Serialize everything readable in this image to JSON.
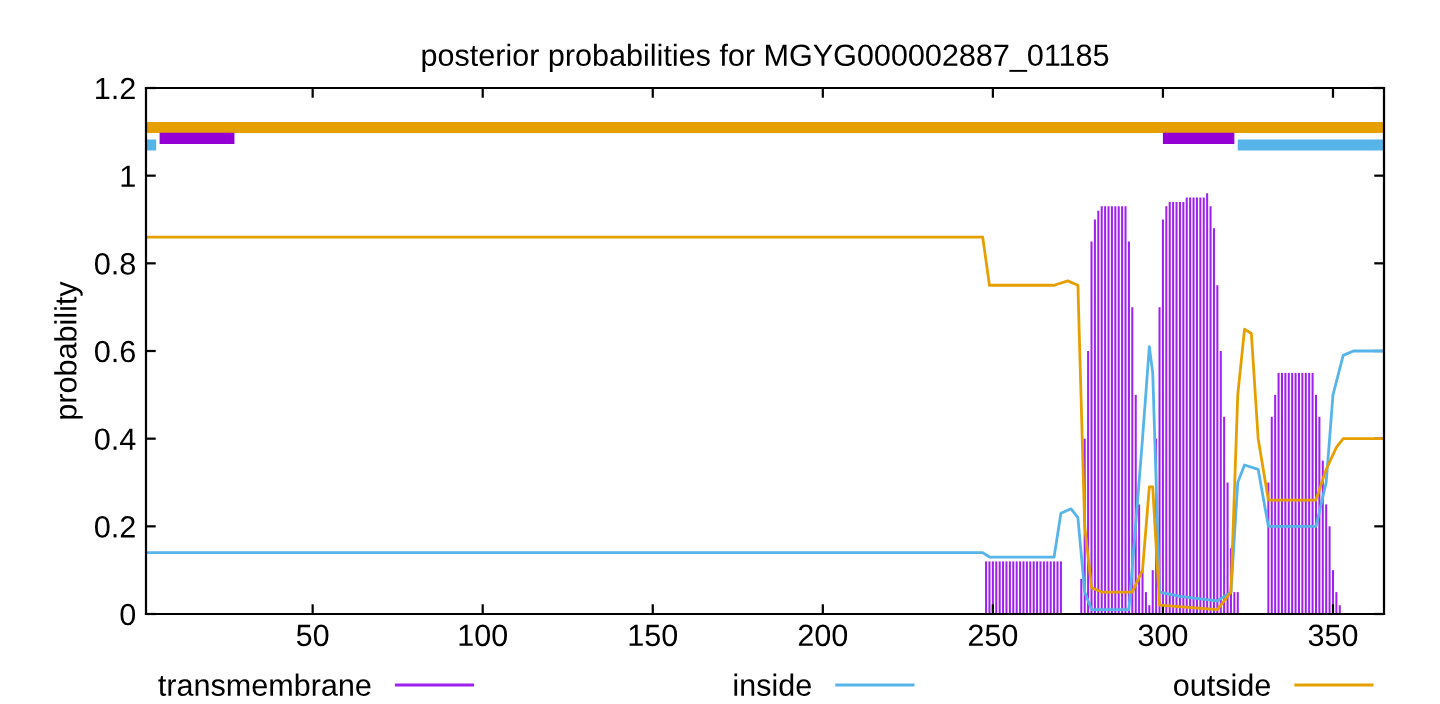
{
  "chart_data": {
    "type": "line",
    "title": "posterior probabilities for MGYG000002887_01185",
    "ylabel": "probability",
    "xlim": [
      1,
      365
    ],
    "xticks": [
      50,
      100,
      150,
      200,
      250,
      300,
      350
    ],
    "ylim": [
      0,
      1.2
    ],
    "yticks": [
      0,
      0.2,
      0.4,
      0.6,
      0.8,
      1,
      1.2
    ],
    "grid": false,
    "legend": "bottom",
    "series": [
      {
        "name": "transmembrane",
        "type": "bar",
        "color": "#a020f0",
        "x": [
          248,
          249,
          250,
          251,
          252,
          253,
          254,
          255,
          256,
          257,
          258,
          259,
          260,
          261,
          262,
          263,
          264,
          265,
          266,
          267,
          268,
          269,
          270,
          271,
          272,
          273,
          274,
          275,
          276,
          277,
          278,
          279,
          280,
          281,
          282,
          283,
          284,
          285,
          286,
          287,
          288,
          289,
          290,
          291,
          292,
          293,
          294,
          295,
          296,
          297,
          298,
          299,
          300,
          301,
          302,
          303,
          304,
          305,
          306,
          307,
          308,
          309,
          310,
          311,
          312,
          313,
          314,
          315,
          316,
          317,
          318,
          319,
          320,
          321,
          322,
          323,
          324,
          325,
          326,
          327,
          328,
          329,
          330,
          331,
          332,
          333,
          334,
          335,
          336,
          337,
          338,
          339,
          340,
          341,
          342,
          343,
          344,
          345,
          346,
          347,
          348,
          349,
          350,
          351,
          352
        ],
        "values": [
          0.12,
          0.12,
          0.12,
          0.12,
          0.12,
          0.12,
          0.12,
          0.12,
          0.12,
          0.12,
          0.12,
          0.12,
          0.12,
          0.12,
          0.12,
          0.12,
          0.12,
          0.12,
          0.12,
          0.12,
          0.12,
          0.12,
          0.12,
          0,
          0,
          0,
          0,
          0,
          0.08,
          0.4,
          0.6,
          0.85,
          0.9,
          0.92,
          0.93,
          0.93,
          0.93,
          0.93,
          0.93,
          0.93,
          0.93,
          0.93,
          0.85,
          0.7,
          0.5,
          0.25,
          0.1,
          0.05,
          0.02,
          0.1,
          0.4,
          0.7,
          0.9,
          0.93,
          0.94,
          0.94,
          0.94,
          0.94,
          0.94,
          0.95,
          0.95,
          0.95,
          0.95,
          0.95,
          0.95,
          0.96,
          0.93,
          0.88,
          0.75,
          0.6,
          0.45,
          0.3,
          0.15,
          0.05,
          0.05,
          0,
          0,
          0,
          0,
          0,
          0,
          0,
          0,
          0.3,
          0.45,
          0.5,
          0.55,
          0.55,
          0.55,
          0.55,
          0.55,
          0.55,
          0.55,
          0.55,
          0.55,
          0.55,
          0.55,
          0.5,
          0.45,
          0.35,
          0.25,
          0.2,
          0.1,
          0.05,
          0.02
        ]
      },
      {
        "name": "inside",
        "color": "#56b4e9",
        "x": [
          1,
          247,
          249,
          268,
          270,
          273,
          275,
          277,
          279,
          290,
          294,
          296,
          297,
          299,
          305,
          316,
          320,
          322,
          324,
          328,
          331,
          345,
          348,
          350,
          353,
          356,
          365
        ],
        "values": [
          0.14,
          0.14,
          0.13,
          0.13,
          0.23,
          0.24,
          0.22,
          0.05,
          0.01,
          0.01,
          0.4,
          0.61,
          0.55,
          0.05,
          0.04,
          0.03,
          0.05,
          0.3,
          0.34,
          0.33,
          0.2,
          0.2,
          0.3,
          0.5,
          0.59,
          0.6,
          0.6
        ]
      },
      {
        "name": "outside",
        "color": "#e69f00",
        "x": [
          1,
          247,
          249,
          268,
          272,
          275,
          277,
          279,
          282,
          291,
          294,
          296,
          297,
          299,
          316,
          320,
          322,
          324,
          326,
          328,
          331,
          345,
          348,
          351,
          353,
          365
        ],
        "values": [
          0.86,
          0.86,
          0.75,
          0.75,
          0.76,
          0.75,
          0.2,
          0.06,
          0.05,
          0.05,
          0.1,
          0.29,
          0.29,
          0.02,
          0.01,
          0.05,
          0.5,
          0.65,
          0.64,
          0.4,
          0.26,
          0.26,
          0.33,
          0.38,
          0.4,
          0.4
        ]
      },
      {
        "color": "#e69f00",
        "x": [
          1,
          365
        ],
        "values": [
          1.11,
          1.11
        ]
      },
      {
        "color": "#56b4e9",
        "x": [
          1,
          4,
          5,
          322,
          365
        ],
        "values": [
          1.07,
          1.07,
          null,
          1.07,
          1.07
        ]
      },
      {
        "color": "#9400d3",
        "x": [
          5,
          27,
          28,
          300,
          321
        ],
        "values": [
          1.085,
          1.085,
          null,
          1.085,
          1.085
        ]
      }
    ]
  }
}
